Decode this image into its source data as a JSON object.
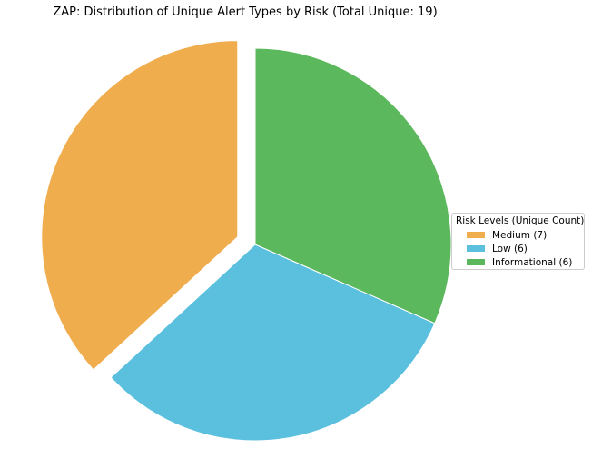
{
  "chart_data": {
    "type": "pie",
    "title": "ZAP: Distribution of Unique Alert Types by Risk (Total Unique: 19)",
    "legend_title": "Risk Levels (Unique Count)",
    "legend_position": "right",
    "start_angle_deg": 90,
    "direction": "counterclockwise",
    "slices": [
      {
        "label": "Medium (7)",
        "value": 7,
        "color": "#f0ad4e",
        "exploded": true
      },
      {
        "label": "Low (6)",
        "value": 6,
        "color": "#5bc0de",
        "exploded": false
      },
      {
        "label": "Informational (6)",
        "value": 6,
        "color": "#5cb85c",
        "exploded": false
      }
    ]
  }
}
